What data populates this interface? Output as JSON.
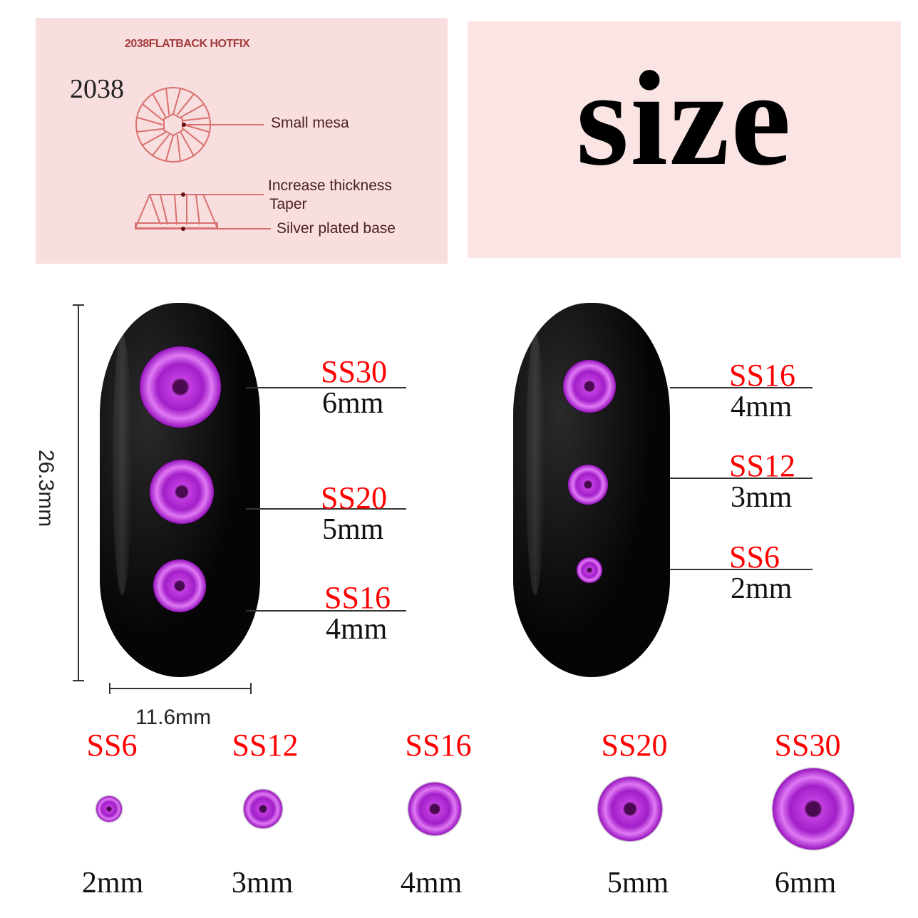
{
  "diagram": {
    "title": "2038FLATBACK HOTFIX",
    "model": "2038",
    "labels": [
      "Small mesa",
      "Increase thickness",
      "Taper",
      "Silver plated base"
    ],
    "line_color": "#d9706f"
  },
  "heading": "size",
  "dimensions": {
    "height": "26.3mm",
    "width": "11.6mm"
  },
  "left_nail": [
    {
      "ss": "SS30",
      "mm": "6mm"
    },
    {
      "ss": "SS20",
      "mm": "5mm"
    },
    {
      "ss": "SS16",
      "mm": "4mm"
    }
  ],
  "right_nail": [
    {
      "ss": "SS16",
      "mm": "4mm"
    },
    {
      "ss": "SS12",
      "mm": "3mm"
    },
    {
      "ss": "SS6",
      "mm": "2mm"
    }
  ],
  "size_row": [
    {
      "ss": "SS6",
      "mm": "2mm"
    },
    {
      "ss": "SS12",
      "mm": "3mm"
    },
    {
      "ss": "SS16",
      "mm": "4mm"
    },
    {
      "ss": "SS20",
      "mm": "5mm"
    },
    {
      "ss": "SS30",
      "mm": "6mm"
    }
  ],
  "colors": {
    "label_red": "#ff0000",
    "gem_purple": "#b02cd8",
    "nail": "#0a0a0a",
    "panel_pink": "#f8dede"
  }
}
